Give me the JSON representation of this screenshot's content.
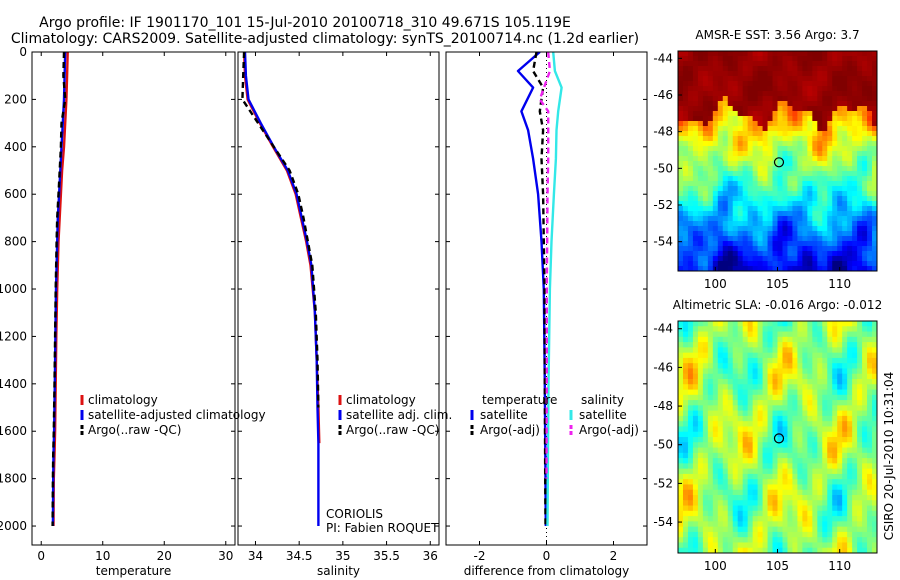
{
  "header": {
    "line1": "Argo profile: IF 1901170_101 15-Jul-2010 20100718_310 49.671S 105.119E",
    "line2": "Climatology: CARS2009. Satellite-adjusted climatology: synTS_20100714.nc (1.2d earlier)"
  },
  "side_stamp": "CSIRO 20-Jul-2010 10:31:04",
  "colors": {
    "climatology": "#dd1111",
    "satellite": "#0000ee",
    "argo": "#000000",
    "sal_satellite": "#33e8e8",
    "sal_argo": "#ee22ee"
  },
  "chart_data": [
    {
      "id": "temperature",
      "type": "line",
      "xlabel": "temperature",
      "ylabel": "",
      "xlim": [
        -1.5,
        31.5
      ],
      "ylim": [
        2080,
        0
      ],
      "xticks": [
        0,
        10,
        20,
        30
      ],
      "xtick_labels": [
        "0",
        "10",
        "20",
        "30"
      ],
      "yticks": [
        0,
        200,
        400,
        600,
        800,
        1000,
        1200,
        1400,
        1600,
        1800,
        2000
      ],
      "ytick_labels": [
        "0",
        "200",
        "400",
        "600",
        "800",
        "1000",
        "1200",
        "1400",
        "1600",
        "1800",
        "2000"
      ],
      "legend": {
        "placement": "lower-right",
        "entries": [
          "climatology",
          "satellite-adjusted climatology",
          "Argo(..raw -QC)"
        ]
      },
      "series": [
        {
          "name": "climatology",
          "color_key": "climatology",
          "x": [
            4.3,
            4.2,
            4.1,
            3.9,
            3.7,
            3.4,
            3.2,
            3.0,
            2.8,
            2.6,
            2.45,
            2.35,
            2.25,
            2.15,
            2.05,
            2.0
          ],
          "y": [
            0,
            100,
            200,
            300,
            400,
            500,
            600,
            700,
            800,
            1000,
            1200,
            1400,
            1600,
            1700,
            1800,
            2000
          ]
        },
        {
          "name": "satellite-adjusted climatology",
          "color_key": "satellite",
          "x": [
            3.9,
            3.8,
            3.7,
            3.5,
            3.3,
            3.1,
            2.9,
            2.7,
            2.6,
            2.4,
            2.3,
            2.2,
            2.1,
            2.0,
            1.95,
            1.9
          ],
          "y": [
            0,
            100,
            200,
            300,
            400,
            500,
            600,
            700,
            800,
            1000,
            1200,
            1400,
            1600,
            1700,
            1800,
            2000
          ]
        },
        {
          "name": "Argo(..raw -QC)",
          "color_key": "argo",
          "x": [
            3.7,
            3.6,
            3.9,
            3.3,
            3.2,
            3.0,
            2.8,
            2.6,
            2.5,
            2.35,
            2.25,
            2.15,
            2.05,
            1.95,
            1.9,
            1.85
          ],
          "y": [
            0,
            100,
            200,
            300,
            400,
            500,
            600,
            700,
            800,
            1000,
            1200,
            1400,
            1600,
            1700,
            1800,
            2000
          ]
        }
      ]
    },
    {
      "id": "salinity",
      "type": "line",
      "xlabel": "salinity",
      "ylabel": "",
      "xlim": [
        33.8,
        36.1
      ],
      "ylim": [
        2080,
        0
      ],
      "xticks": [
        34,
        34.5,
        35,
        35.5,
        36
      ],
      "xtick_labels": [
        "34",
        "34.5",
        "35",
        "35.5",
        "36"
      ],
      "legend": {
        "placement": "lower-right",
        "entries": [
          "climatology",
          "satellite adj. clim.",
          "Argo(..raw -QC)"
        ]
      },
      "annotations": [
        "CORIOLIS",
        "PI: Fabien ROQUET"
      ],
      "series": [
        {
          "name": "climatology",
          "color_key": "climatology",
          "x": [
            33.87,
            33.88,
            33.91,
            34.05,
            34.2,
            34.36,
            34.46,
            34.52,
            34.58,
            34.63,
            34.68,
            34.7,
            34.72,
            34.73
          ],
          "y": [
            0,
            100,
            200,
            300,
            400,
            500,
            600,
            700,
            800,
            900,
            1100,
            1300,
            1500,
            1650
          ]
        },
        {
          "name": "satellite adj. clim.",
          "color_key": "satellite",
          "x": [
            33.88,
            33.89,
            33.92,
            34.06,
            34.21,
            34.37,
            34.47,
            34.53,
            34.59,
            34.64,
            34.68,
            34.7,
            34.71,
            34.72,
            34.72,
            34.72
          ],
          "y": [
            0,
            100,
            200,
            300,
            400,
            500,
            600,
            700,
            800,
            900,
            1100,
            1300,
            1500,
            1650,
            1800,
            2000
          ]
        },
        {
          "name": "Argo(..raw -QC)",
          "color_key": "argo",
          "x": [
            33.87,
            33.86,
            33.85,
            34.03,
            34.21,
            34.39,
            34.49,
            34.55,
            34.6,
            34.65,
            34.69,
            34.71,
            34.72
          ],
          "y": [
            0,
            100,
            200,
            300,
            400,
            500,
            600,
            700,
            800,
            900,
            1100,
            1300,
            1500
          ]
        }
      ]
    },
    {
      "id": "difference",
      "type": "line",
      "xlabel": "difference from climatology",
      "ylabel": "",
      "xlim": [
        -3,
        3
      ],
      "ylim": [
        2080,
        0
      ],
      "xticks": [
        -2,
        0,
        2
      ],
      "xtick_labels": [
        "-2",
        "0",
        "2"
      ],
      "legend": {
        "placement": "lower-right",
        "groups": [
          {
            "title": "temperature",
            "entries": [
              "satellite",
              "Argo(-adj)"
            ]
          },
          {
            "title": "salinity",
            "entries": [
              "satellite",
              "Argo(-adj)"
            ]
          }
        ]
      },
      "series": [
        {
          "name": "temperature satellite",
          "color_key": "satellite",
          "x": [
            -0.2,
            -0.85,
            -0.4,
            -0.75,
            -0.55,
            -0.4,
            -0.25,
            -0.15,
            -0.08,
            -0.05,
            -0.03,
            -0.02
          ],
          "y": [
            0,
            80,
            150,
            250,
            330,
            450,
            600,
            800,
            1000,
            1400,
            1800,
            2000
          ]
        },
        {
          "name": "temperature Argo(-adj)",
          "color_key": "argo",
          "x": [
            -0.3,
            -0.4,
            -0.1,
            -0.2,
            -0.1,
            -0.15,
            -0.1,
            -0.08,
            -0.06,
            -0.05,
            -0.04,
            -0.03
          ],
          "y": [
            0,
            80,
            150,
            250,
            330,
            450,
            600,
            800,
            1000,
            1400,
            1800,
            2000
          ]
        },
        {
          "name": "salinity satellite",
          "color_key": "sal_satellite",
          "x": [
            0.2,
            0.25,
            0.45,
            0.35,
            0.3,
            0.28,
            0.22,
            0.15,
            0.1,
            0.06,
            0.04,
            0.03
          ],
          "y": [
            0,
            80,
            150,
            250,
            330,
            450,
            600,
            800,
            1000,
            1400,
            1800,
            2000
          ]
        },
        {
          "name": "salinity Argo(-adj)",
          "color_key": "sal_argo",
          "x": [
            0.05,
            0.1,
            -0.2,
            0.05,
            0.05,
            0.05,
            0.03,
            0.02,
            0.01,
            0.01,
            0.0
          ],
          "y": [
            0,
            80,
            200,
            250,
            330,
            450,
            600,
            800,
            1000,
            1400,
            1800
          ]
        }
      ]
    },
    {
      "id": "sst-map",
      "type": "heatmap",
      "title": "AMSR-E SST: 3.56 Argo: 3.7",
      "xlim": [
        97,
        113
      ],
      "ylim": [
        -55.6,
        -43.6
      ],
      "xticks": [
        100,
        105,
        110
      ],
      "xtick_labels": [
        "100",
        "105",
        "110"
      ],
      "yticks": [
        -44,
        -46,
        -48,
        -50,
        -52,
        -54
      ],
      "ytick_labels": [
        "-44",
        "-46",
        "-48",
        "-50",
        "-52",
        "-54"
      ],
      "marker": {
        "lon": 105.119,
        "lat": -49.671
      }
    },
    {
      "id": "sla-map",
      "type": "heatmap",
      "title": "Altimetric SLA: -0.016 Argo: -0.012",
      "xlim": [
        97,
        113
      ],
      "ylim": [
        -55.6,
        -43.6
      ],
      "xticks": [
        100,
        105,
        110
      ],
      "xtick_labels": [
        "100",
        "105",
        "110"
      ],
      "yticks": [
        -44,
        -46,
        -48,
        -50,
        -52,
        -54
      ],
      "ytick_labels": [
        "-44",
        "-46",
        "-48",
        "-50",
        "-52",
        "-54"
      ],
      "marker": {
        "lon": 105.119,
        "lat": -49.671
      }
    }
  ]
}
